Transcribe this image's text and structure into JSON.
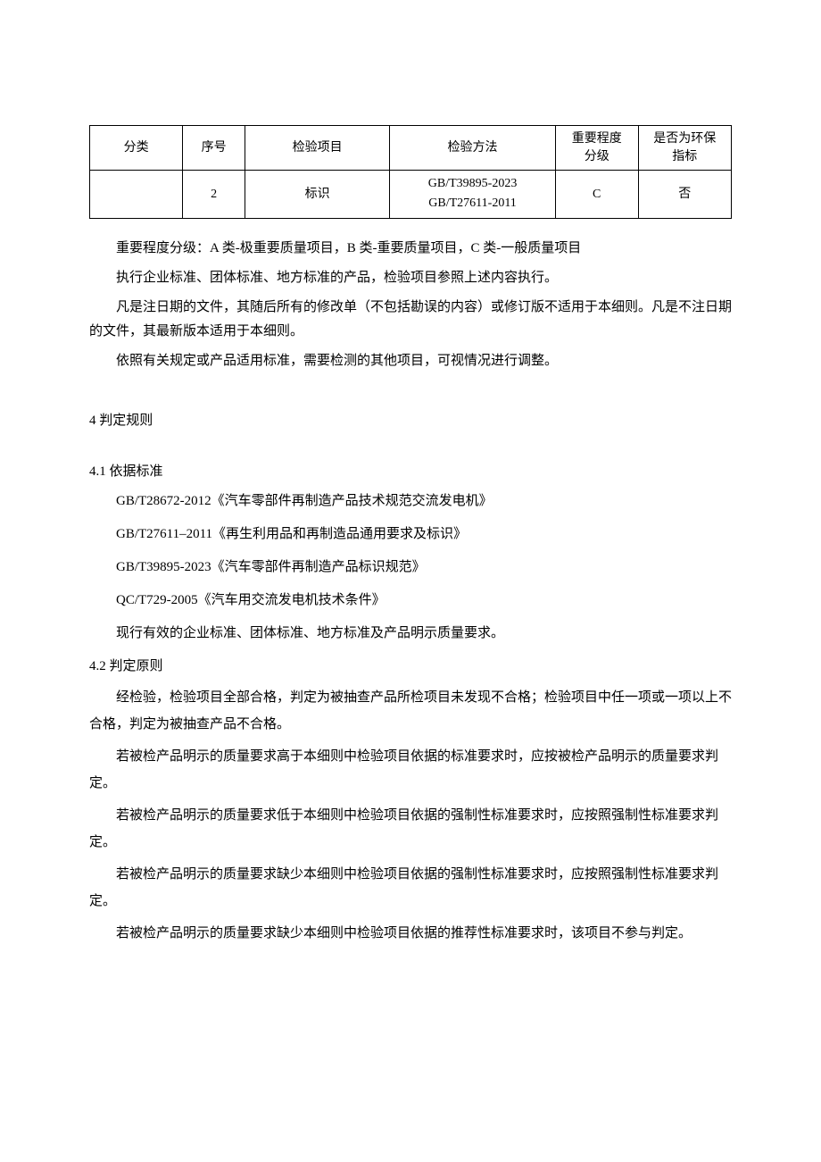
{
  "table": {
    "headers": {
      "category": "分类",
      "seq": "序号",
      "item": "检验项目",
      "method": "检验方法",
      "level_line1": "重要程度",
      "level_line2": "分级",
      "env_line1": "是否为环保",
      "env_line2": "指标"
    },
    "row": {
      "category": "",
      "seq": "2",
      "item": "标识",
      "method_line1": "GB/T39895-2023",
      "method_line2": "GB/T27611-2011",
      "level": "C",
      "env": "否"
    }
  },
  "notes": {
    "n1": "重要程度分级：A 类-极重要质量项目，B 类-重要质量项目，C 类-一般质量项目",
    "n2": "执行企业标准、团体标准、地方标准的产品，检验项目参照上述内容执行。",
    "n3": "凡是注日期的文件，其随后所有的修改单（不包括勘误的内容）或修订版不适用于本细则。凡是不注日期的文件，其最新版本适用于本细则。",
    "n4": "依照有关规定或产品适用标准，需要检测的其他项目，可视情况进行调整。"
  },
  "section4": {
    "heading": "4 判定规则",
    "sub1": {
      "heading": "4.1  依据标准",
      "s1": "GB/T28672-2012《汽车零部件再制造产品技术规范交流发电机》",
      "s2": "GB/T27611–2011《再生利用品和再制造品通用要求及标识》",
      "s3": "GB/T39895-2023《汽车零部件再制造产品标识规范》",
      "s4": "QC/T729-2005《汽车用交流发电机技术条件》",
      "s5": "现行有效的企业标准、团体标准、地方标准及产品明示质量要求。"
    },
    "sub2": {
      "heading": "4.2  判定原则",
      "p1": "经检验，检验项目全部合格，判定为被抽查产品所检项目未发现不合格；检验项目中任一项或一项以上不合格，判定为被抽查产品不合格。",
      "p2": "若被检产品明示的质量要求高于本细则中检验项目依据的标准要求时，应按被检产品明示的质量要求判定。",
      "p3": "若被检产品明示的质量要求低于本细则中检验项目依据的强制性标准要求时，应按照强制性标准要求判定。",
      "p4": "若被检产品明示的质量要求缺少本细则中检验项目依据的强制性标准要求时，应按照强制性标准要求判定。",
      "p5": "若被检产品明示的质量要求缺少本细则中检验项目依据的推荐性标准要求时，该项目不参与判定。"
    }
  }
}
